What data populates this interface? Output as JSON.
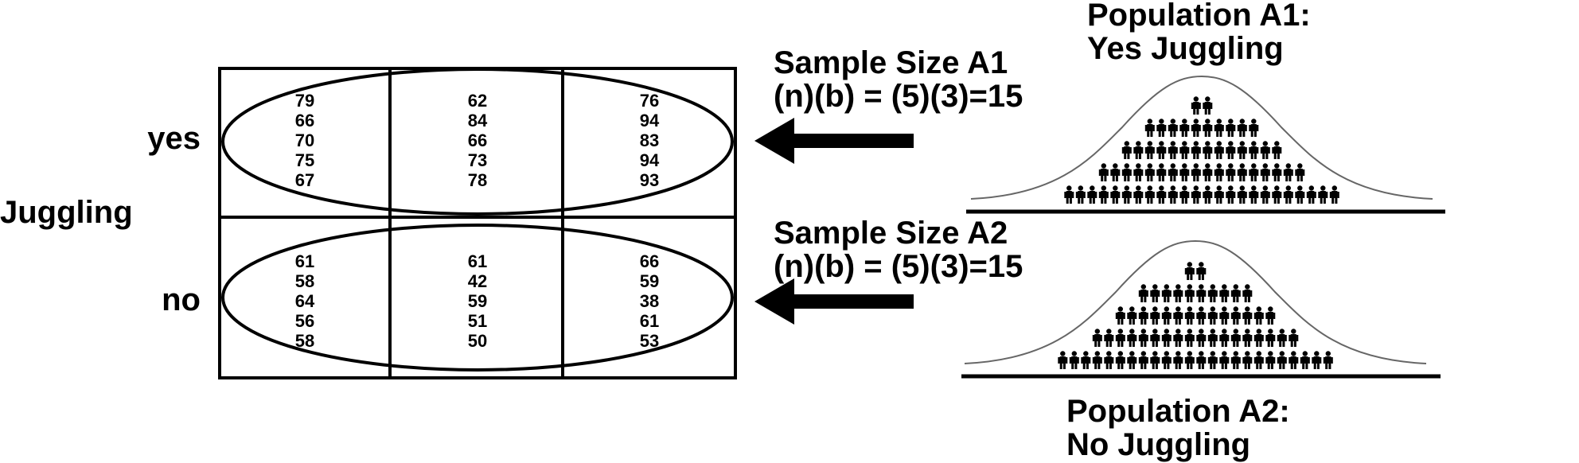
{
  "factor_label": "Juggling",
  "levels": [
    {
      "label": "yes",
      "cells": [
        [
          "79",
          "66",
          "70",
          "75",
          "67"
        ],
        [
          "62",
          "84",
          "66",
          "73",
          "78"
        ],
        [
          "76",
          "94",
          "83",
          "94",
          "93"
        ]
      ]
    },
    {
      "label": "no",
      "cells": [
        [
          "61",
          "58",
          "64",
          "56",
          "58"
        ],
        [
          "61",
          "42",
          "59",
          "51",
          "50"
        ],
        [
          "66",
          "59",
          "38",
          "61",
          "53"
        ]
      ]
    }
  ],
  "samples": [
    {
      "title": "Sample Size A1",
      "formula": "(n)(b) = (5)(3)=15"
    },
    {
      "title": "Sample Size A2",
      "formula": "(n)(b) = (5)(3)=15"
    }
  ],
  "populations": [
    {
      "line1": "Population A1:",
      "line2": "Yes Juggling",
      "rows": [
        2,
        10,
        14,
        18,
        24
      ]
    },
    {
      "line1": "Population A2:",
      "line2": "No Juggling",
      "rows": [
        2,
        10,
        14,
        18,
        24
      ]
    }
  ]
}
